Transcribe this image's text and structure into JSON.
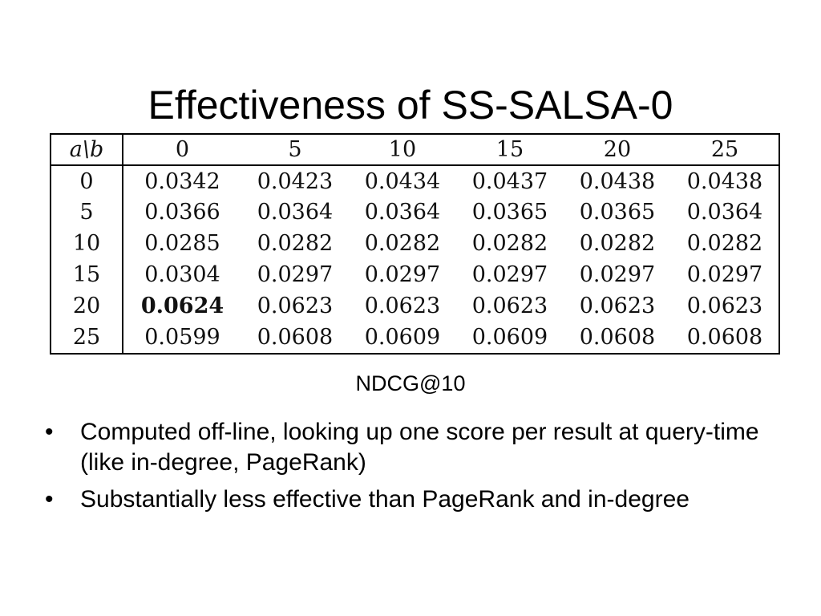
{
  "slide": {
    "title": "Effectiveness of SS-SALSA-0",
    "caption": "NDCG@10"
  },
  "table": {
    "corner_label": "a\\b",
    "columns": [
      "0",
      "5",
      "10",
      "15",
      "20",
      "25"
    ],
    "rows": [
      {
        "a": "0",
        "cells": [
          "0.0342",
          "0.0423",
          "0.0434",
          "0.0437",
          "0.0438",
          "0.0438"
        ]
      },
      {
        "a": "5",
        "cells": [
          "0.0366",
          "0.0364",
          "0.0364",
          "0.0365",
          "0.0365",
          "0.0364"
        ]
      },
      {
        "a": "10",
        "cells": [
          "0.0285",
          "0.0282",
          "0.0282",
          "0.0282",
          "0.0282",
          "0.0282"
        ]
      },
      {
        "a": "15",
        "cells": [
          "0.0304",
          "0.0297",
          "0.0297",
          "0.0297",
          "0.0297",
          "0.0297"
        ]
      },
      {
        "a": "20",
        "cells": [
          "0.0624",
          "0.0623",
          "0.0623",
          "0.0623",
          "0.0623",
          "0.0623"
        ]
      },
      {
        "a": "25",
        "cells": [
          "0.0599",
          "0.0608",
          "0.0609",
          "0.0609",
          "0.0608",
          "0.0608"
        ]
      }
    ],
    "best_cell": {
      "row": 4,
      "col": 0
    }
  },
  "bullets": [
    {
      "icon": "bullet-dot",
      "text": "Computed off-line, looking up one score per result at query-time (like in-degree, PageRank)"
    },
    {
      "icon": "bullet-dot",
      "text": "Substantially less effective than PageRank and in-degree"
    }
  ]
}
